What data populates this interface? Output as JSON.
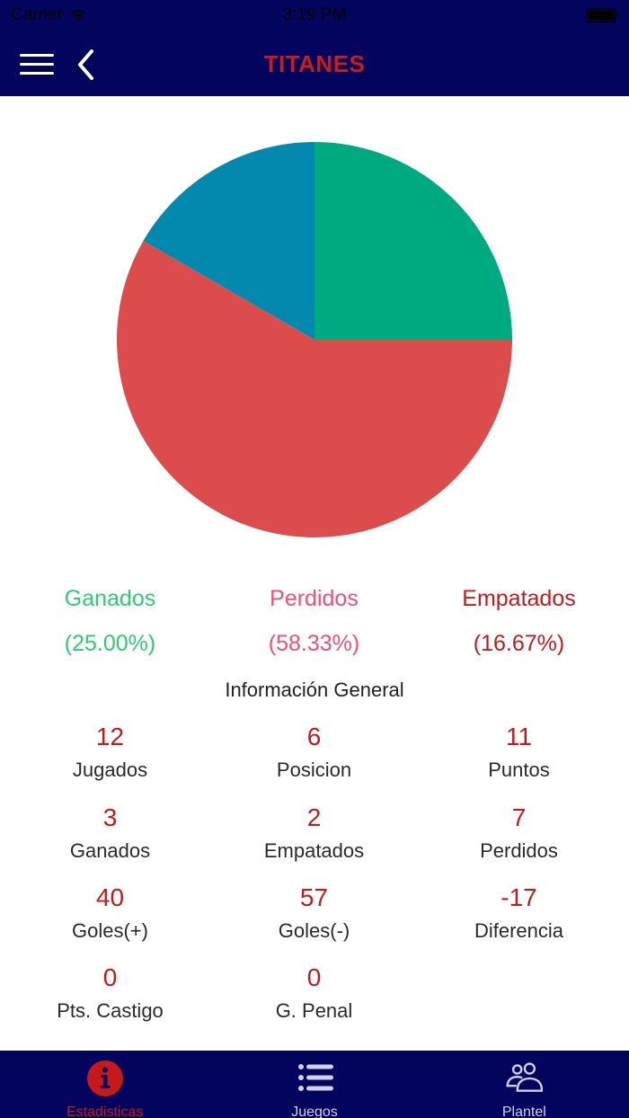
{
  "status_bar": {
    "carrier": "Carrier",
    "time": "3:19 PM",
    "wifi_icon": "wifi-icon",
    "battery_icon": "battery-full-icon"
  },
  "nav": {
    "title": "TITANES",
    "menu_icon": "hamburger-menu-icon",
    "back_icon": "chevron-left-icon"
  },
  "colors": {
    "header_bg": "#03045e",
    "title": "#cc1b1b",
    "value": "#c41a1a",
    "legend_ganados": "#2ecc71",
    "legend_perdidos": "#f0506e",
    "legend_empatados": "#c41a1a",
    "slice_ganados": "#00aa81",
    "slice_perdidos": "#dc4c4d",
    "slice_empatados": "#0489ae",
    "tab_active": "#c41a1a",
    "tab_inactive": "#d0d0e8"
  },
  "chart_data": {
    "type": "pie",
    "title": "",
    "categories": [
      "Ganados",
      "Perdidos",
      "Empatados"
    ],
    "values": [
      25.0,
      58.33,
      16.67
    ],
    "counts": [
      3,
      7,
      2
    ],
    "colors": [
      "#00aa81",
      "#dc4c4d",
      "#0489ae"
    ],
    "start_angle_deg": 0,
    "direction": "clockwise-from-top",
    "legend_position": "bottom"
  },
  "legend": [
    {
      "label": "Ganados",
      "pct": "(25.00%)"
    },
    {
      "label": "Perdidos",
      "pct": "(58.33%)"
    },
    {
      "label": "Empatados",
      "pct": "(16.67%)"
    }
  ],
  "section_title": "Información General",
  "stats": [
    {
      "value": "12",
      "label": "Jugados"
    },
    {
      "value": "6",
      "label": "Posicion"
    },
    {
      "value": "11",
      "label": "Puntos"
    },
    {
      "value": "3",
      "label": "Ganados"
    },
    {
      "value": "2",
      "label": "Empatados"
    },
    {
      "value": "7",
      "label": "Perdidos"
    },
    {
      "value": "40",
      "label": "Goles(+)"
    },
    {
      "value": "57",
      "label": "Goles(-)"
    },
    {
      "value": "-17",
      "label": "Diferencia"
    },
    {
      "value": "0",
      "label": "Pts. Castigo"
    },
    {
      "value": "0",
      "label": "G. Penal"
    }
  ],
  "tabs": [
    {
      "label": "Estadisticas",
      "icon": "info-circle-icon",
      "active": true
    },
    {
      "label": "Juegos",
      "icon": "list-icon",
      "active": false
    },
    {
      "label": "Plantel",
      "icon": "people-icon",
      "active": false
    }
  ]
}
